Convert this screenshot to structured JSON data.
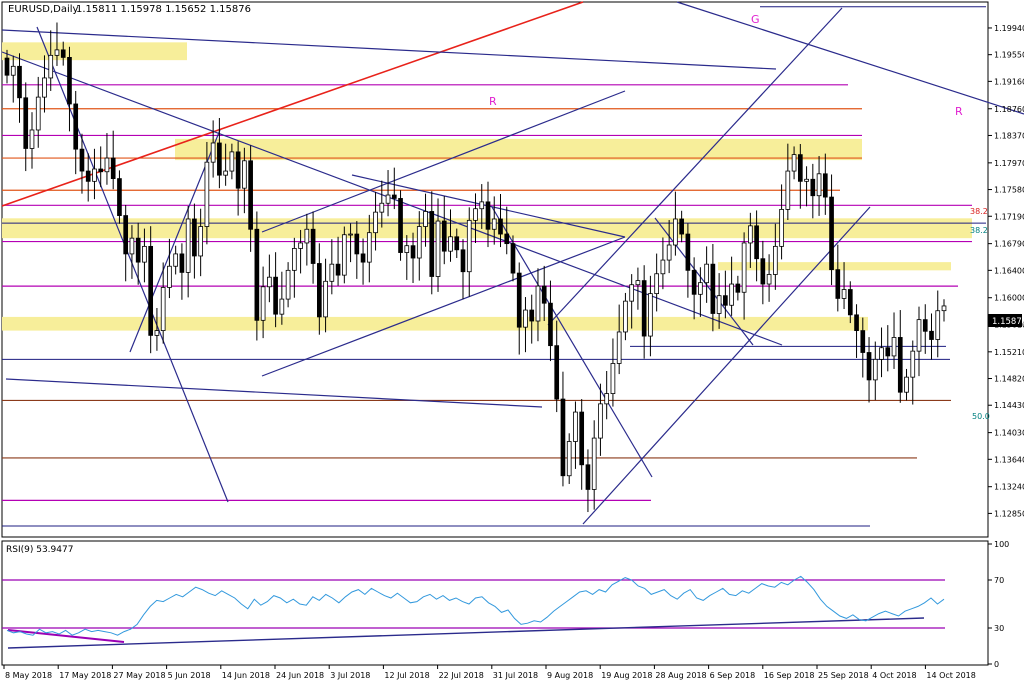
{
  "header": {
    "symbol_label": "EURUSD,Daily",
    "ohlc_label": "1.15811 1.15978 1.15652 1.15876"
  },
  "rsi_header": {
    "label": "RSI(9) 53.9477"
  },
  "colors": {
    "bull_candle": "#ffffff",
    "bear_candle": "#000000",
    "candle_outline": "#000000",
    "trend_line": "#2b2b8c",
    "red_channel": "#e8221a",
    "magenta_level": "#b400b4",
    "orange_level": "#e0561a",
    "brown_level": "#8b3a1a",
    "navy_level": "#1c1c80",
    "zone_fill": "#f7ee9a",
    "rsi_line": "#3399dd",
    "rsi_level_line": "#9a00b4",
    "fib_text": "#d92020",
    "fib_text_teal": "#008080",
    "marker_text": "#e020d0",
    "price_tag_bg": "#000000",
    "price_tag_text": "#ffffff"
  },
  "annotations": {
    "fib_38_upper": "38.2",
    "fib_38_lower": "38.2",
    "fib_50": "50.0",
    "marker_g": "G",
    "marker_r_left": "R",
    "marker_r_right": "R"
  },
  "chart_data": [
    {
      "type": "candlestick",
      "title": "EURUSD,Daily",
      "ylim": [
        1.1252,
        1.2029
      ],
      "y_ticks": [
        "1.19940",
        "1.19550",
        "1.19160",
        "1.18760",
        "1.18370",
        "1.17970",
        "1.17580",
        "1.17190",
        "1.16790",
        "1.16400",
        "1.16000",
        "1.15610",
        "1.15210",
        "1.14820",
        "1.14430",
        "1.14030",
        "1.13640",
        "1.13240",
        "1.12850"
      ],
      "x_ticks": [
        "8 May 2018",
        "17 May 2018",
        "27 May 2018",
        "5 Jun 2018",
        "14 Jun 2018",
        "24 Jun 2018",
        "3 Jul 2018",
        "12 Jul 2018",
        "22 Jul 2018",
        "31 Jul 2018",
        "9 Aug 2018",
        "19 Aug 2018",
        "28 Aug 2018",
        "6 Sep 2018",
        "16 Sep 2018",
        "25 Sep 2018",
        "4 Oct 2018",
        "14 Oct 2018"
      ],
      "current_price": "1.15876",
      "last_ohlc": {
        "open": 1.15811,
        "high": 1.15978,
        "low": 1.15652,
        "close": 1.15876
      },
      "closes": [
        1.1925,
        1.1938,
        1.1892,
        1.1818,
        1.1845,
        1.1893,
        1.1921,
        1.1954,
        1.1962,
        1.1951,
        1.1883,
        1.1817,
        1.1785,
        1.177,
        1.1788,
        1.1784,
        1.1804,
        1.1774,
        1.172,
        1.1664,
        1.1687,
        1.1652,
        1.1675,
        1.1545,
        1.1552,
        1.1615,
        1.1646,
        1.1664,
        1.1637,
        1.1715,
        1.1661,
        1.1704,
        1.1798,
        1.1826,
        1.1779,
        1.1785,
        1.1813,
        1.176,
        1.18,
        1.17,
        1.1567,
        1.1616,
        1.163,
        1.1576,
        1.1598,
        1.164,
        1.1672,
        1.168,
        1.17,
        1.165,
        1.1572,
        1.1624,
        1.1649,
        1.1633,
        1.1692,
        1.1693,
        1.1664,
        1.1652,
        1.1695,
        1.1725,
        1.1738,
        1.175,
        1.1745,
        1.1666,
        1.1676,
        1.1658,
        1.1704,
        1.1726,
        1.1631,
        1.1712,
        1.1668,
        1.1689,
        1.167,
        1.1638,
        1.1713,
        1.173,
        1.174,
        1.17,
        1.1715,
        1.1693,
        1.1679,
        1.1636,
        1.1557,
        1.1582,
        1.1566,
        1.1617,
        1.1592,
        1.153,
        1.1452,
        1.134,
        1.139,
        1.1433,
        1.1356,
        1.132,
        1.1395,
        1.1445,
        1.146,
        1.1504,
        1.155,
        1.1595,
        1.1619,
        1.1625,
        1.1544,
        1.1606,
        1.1635,
        1.1655,
        1.1677,
        1.1715,
        1.1693,
        1.164,
        1.1605,
        1.1622,
        1.1649,
        1.1577,
        1.1603,
        1.1589,
        1.162,
        1.1608,
        1.168,
        1.1705,
        1.1657,
        1.162,
        1.1634,
        1.1675,
        1.1729,
        1.1785,
        1.1809,
        1.177,
        1.1773,
        1.1749,
        1.1781,
        1.1747,
        1.1641,
        1.1599,
        1.1612,
        1.1575,
        1.1552,
        1.152,
        1.148,
        1.151,
        1.1527,
        1.1515,
        1.1542,
        1.1462,
        1.1484,
        1.1522,
        1.1568,
        1.1551,
        1.1539,
        1.1581,
        1.1588
      ],
      "horizontal_levels": [
        1.2025,
        1.1911,
        1.1876,
        1.1837,
        1.1804,
        1.1757,
        1.1735,
        1.1709,
        1.1682,
        1.1617,
        1.1529,
        1.151,
        1.145,
        1.1366,
        1.1304
      ],
      "zones": [
        [
          1.1947,
          1.1973
        ],
        [
          1.1801,
          1.1832
        ],
        [
          1.1687,
          1.1716
        ],
        [
          1.164,
          1.1652
        ],
        [
          1.1552,
          1.1572
        ]
      ]
    },
    {
      "type": "line",
      "title": "RSI(9) 53.9477",
      "ylim": [
        0,
        100
      ],
      "y_ticks": [
        "100",
        "70",
        "30",
        "0"
      ],
      "levels": [
        70,
        30
      ],
      "values": [
        28,
        26,
        27,
        25,
        24,
        29,
        26,
        27,
        25,
        28,
        24,
        26,
        29,
        27,
        28,
        27,
        26,
        24,
        27,
        29,
        33,
        41,
        48,
        53,
        52,
        55,
        58,
        56,
        60,
        64,
        62,
        59,
        57,
        61,
        58,
        55,
        50,
        46,
        54,
        49,
        52,
        57,
        55,
        51,
        54,
        50,
        49,
        56,
        53,
        58,
        55,
        51,
        56,
        60,
        62,
        58,
        63,
        60,
        57,
        55,
        59,
        55,
        51,
        52,
        56,
        58,
        54,
        57,
        53,
        55,
        52,
        50,
        55,
        56,
        51,
        48,
        43,
        45,
        38,
        33,
        34,
        36,
        35,
        39,
        44,
        48,
        52,
        56,
        60,
        61,
        58,
        62,
        60,
        66,
        69,
        72,
        70,
        65,
        63,
        58,
        60,
        62,
        57,
        54,
        59,
        62,
        55,
        53,
        57,
        60,
        63,
        58,
        57,
        61,
        59,
        63,
        67,
        65,
        64,
        68,
        66,
        70,
        73,
        68,
        62,
        54,
        48,
        44,
        40,
        38,
        41,
        37,
        36,
        39,
        42,
        44,
        42,
        40,
        44,
        46,
        48,
        51,
        55,
        50,
        54
      ],
      "current_value": "53.9477"
    }
  ]
}
